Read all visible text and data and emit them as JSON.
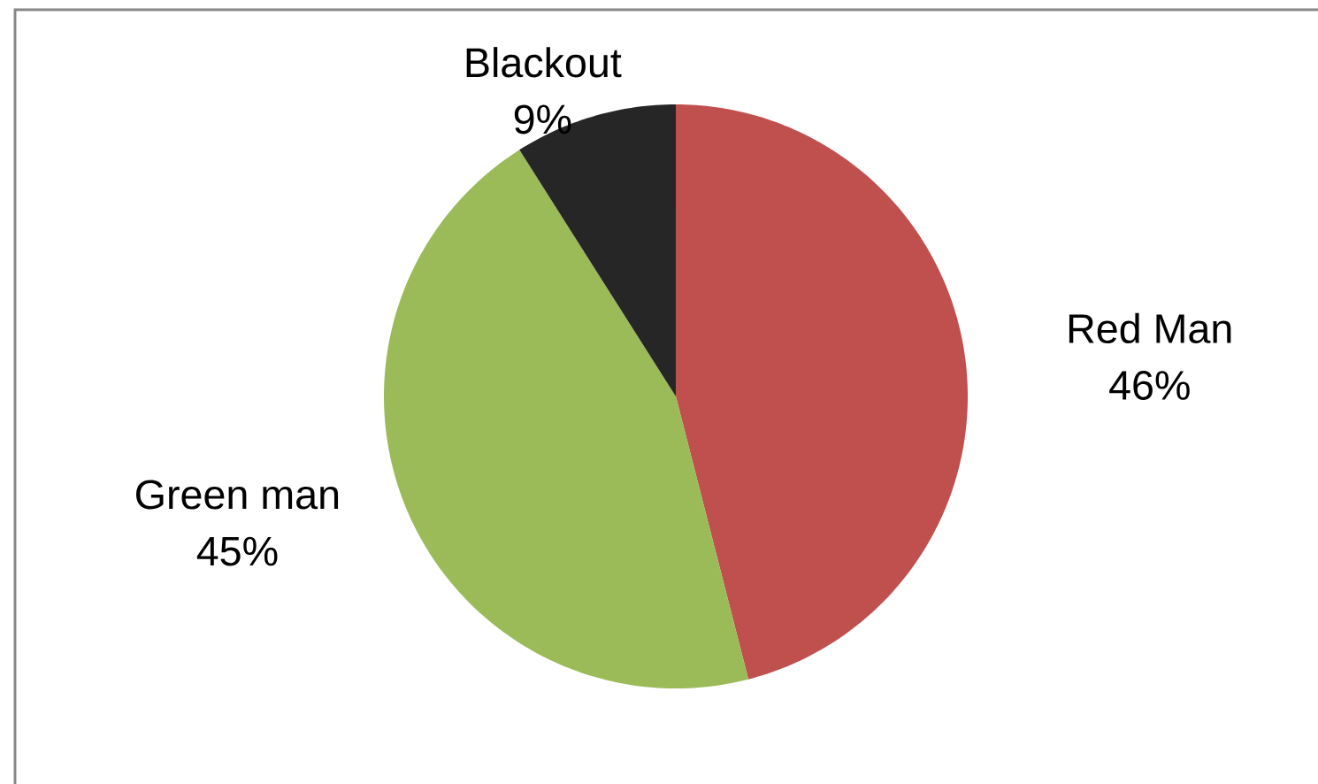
{
  "chart_data": {
    "type": "pie",
    "categories": [
      "Red Man",
      "Green man",
      "Blackout"
    ],
    "values": [
      46,
      45,
      9
    ],
    "colors": [
      "#c0504d",
      "#9bbb59",
      "#262626"
    ],
    "value_labels": [
      "46%",
      "45%",
      "9%"
    ]
  }
}
